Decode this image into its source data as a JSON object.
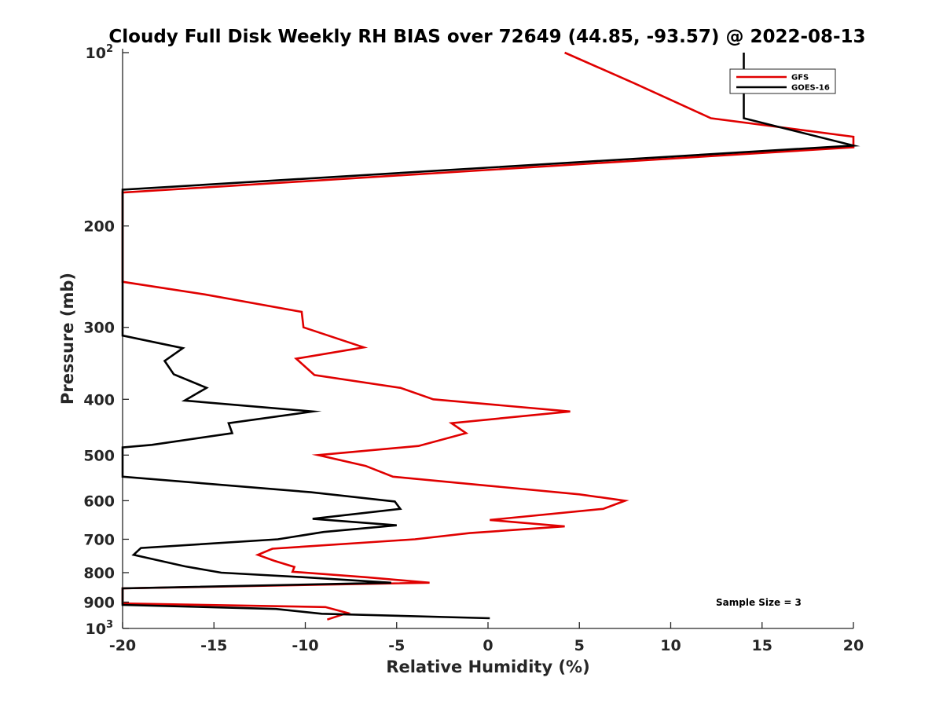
{
  "chart_data": {
    "type": "line",
    "title": "Cloudy Full Disk Weekly RH BIAS over 72649 (44.85, -93.57) @ 2022-08-13",
    "xlabel": "Relative Humidity (%)",
    "ylabel": "Pressure (mb)",
    "xlim": [
      -20,
      20
    ],
    "ylim": [
      100,
      1000
    ],
    "y_scale": "log",
    "y_reversed": true,
    "x_ticks": [
      "-20",
      "-15",
      "-10",
      "-5",
      "0",
      "5",
      "10",
      "15",
      "20"
    ],
    "y_ticks": [
      {
        "value": 100,
        "base": "10",
        "exp": "2"
      },
      {
        "value": 200,
        "label": "200"
      },
      {
        "value": 300,
        "label": "300"
      },
      {
        "value": 400,
        "label": "400"
      },
      {
        "value": 500,
        "label": "500"
      },
      {
        "value": 600,
        "label": "600"
      },
      {
        "value": 700,
        "label": "700"
      },
      {
        "value": 800,
        "label": "800"
      },
      {
        "value": 900,
        "label": "900"
      },
      {
        "value": 1000,
        "base": "10",
        "exp": "3"
      }
    ],
    "grid": false,
    "legend_position": "top-right",
    "annotation": "Sample Size = 3",
    "series": [
      {
        "name": "GFS",
        "color": "#e00000",
        "points": [
          [
            4.2,
            100
          ],
          [
            8,
            113
          ],
          [
            12.2,
            130
          ],
          [
            20,
            140
          ],
          [
            20,
            146
          ],
          [
            -20,
            175
          ],
          [
            -20,
            250
          ],
          [
            -15.5,
            263
          ],
          [
            -10.2,
            282
          ],
          [
            -10.1,
            300
          ],
          [
            -6.8,
            325
          ],
          [
            -10.5,
            340
          ],
          [
            -9.5,
            363
          ],
          [
            -4.8,
            382
          ],
          [
            -3,
            400
          ],
          [
            4.5,
            420
          ],
          [
            -2,
            440
          ],
          [
            -1.2,
            458
          ],
          [
            -3.8,
            482
          ],
          [
            -9.3,
            500
          ],
          [
            -6.7,
            522
          ],
          [
            -5.2,
            545
          ],
          [
            0,
            565
          ],
          [
            5,
            585
          ],
          [
            7.5,
            600
          ],
          [
            6.3,
            620
          ],
          [
            0.1,
            648
          ],
          [
            4.2,
            665
          ],
          [
            -1,
            683
          ],
          [
            -4,
            700
          ],
          [
            -11.8,
            727
          ],
          [
            -12.6,
            745
          ],
          [
            -11.7,
            763
          ],
          [
            -10.6,
            782
          ],
          [
            -10.7,
            797
          ],
          [
            -6.6,
            815
          ],
          [
            -3.2,
            833
          ],
          [
            -20,
            852
          ],
          [
            -20,
            905
          ],
          [
            -8.9,
            918
          ],
          [
            -7.7,
            940
          ],
          [
            -8.8,
            965
          ]
        ]
      },
      {
        "name": "GOES-16",
        "color": "#000000",
        "points": [
          [
            14,
            100
          ],
          [
            14,
            130
          ],
          [
            20,
            145
          ],
          [
            -20,
            173
          ],
          [
            -20,
            310
          ],
          [
            -16.7,
            326
          ],
          [
            -17.7,
            343
          ],
          [
            -17.2,
            362
          ],
          [
            -15.4,
            382
          ],
          [
            -16.6,
            402
          ],
          [
            -9.6,
            420
          ],
          [
            -14.2,
            440
          ],
          [
            -14,
            458
          ],
          [
            -18.4,
            480
          ],
          [
            -20,
            485
          ],
          [
            -20,
            545
          ],
          [
            -9.7,
            580
          ],
          [
            -5.1,
            602
          ],
          [
            -4.8,
            620
          ],
          [
            -9.6,
            645
          ],
          [
            -5,
            662
          ],
          [
            -9,
            680
          ],
          [
            -11.5,
            700
          ],
          [
            -19,
            725
          ],
          [
            -19.4,
            745
          ],
          [
            -16.6,
            780
          ],
          [
            -14.6,
            800
          ],
          [
            -10,
            815
          ],
          [
            -5.3,
            833
          ],
          [
            -20,
            852
          ],
          [
            -20,
            910
          ],
          [
            -11.6,
            925
          ],
          [
            -9.1,
            943
          ],
          [
            0.1,
            960
          ]
        ]
      }
    ]
  }
}
